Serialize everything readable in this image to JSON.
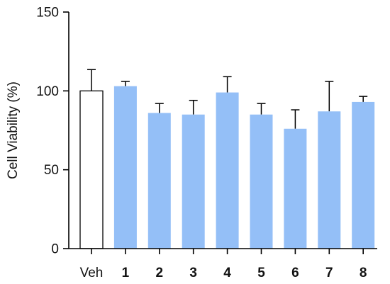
{
  "chart_data": {
    "type": "bar",
    "title": "",
    "xlabel": "",
    "ylabel": "Cell Viability (%)",
    "ylim": [
      0,
      150
    ],
    "yticks": [
      0,
      50,
      100,
      150
    ],
    "grid": false,
    "legend": "none",
    "categories": [
      "Veh",
      "1",
      "2",
      "3",
      "4",
      "5",
      "6",
      "7",
      "8"
    ],
    "bold_categories": [
      "1",
      "2",
      "3",
      "4",
      "5",
      "6",
      "7",
      "8"
    ],
    "values": [
      100,
      103,
      86,
      85,
      99,
      85,
      76,
      87,
      93
    ],
    "errors": [
      13.5,
      3,
      6,
      9,
      10,
      7,
      12,
      19,
      3.5
    ],
    "colors": {
      "control_fill": "#ffffff",
      "treatment_fill": "#94bff7",
      "stroke": "#000000"
    }
  }
}
